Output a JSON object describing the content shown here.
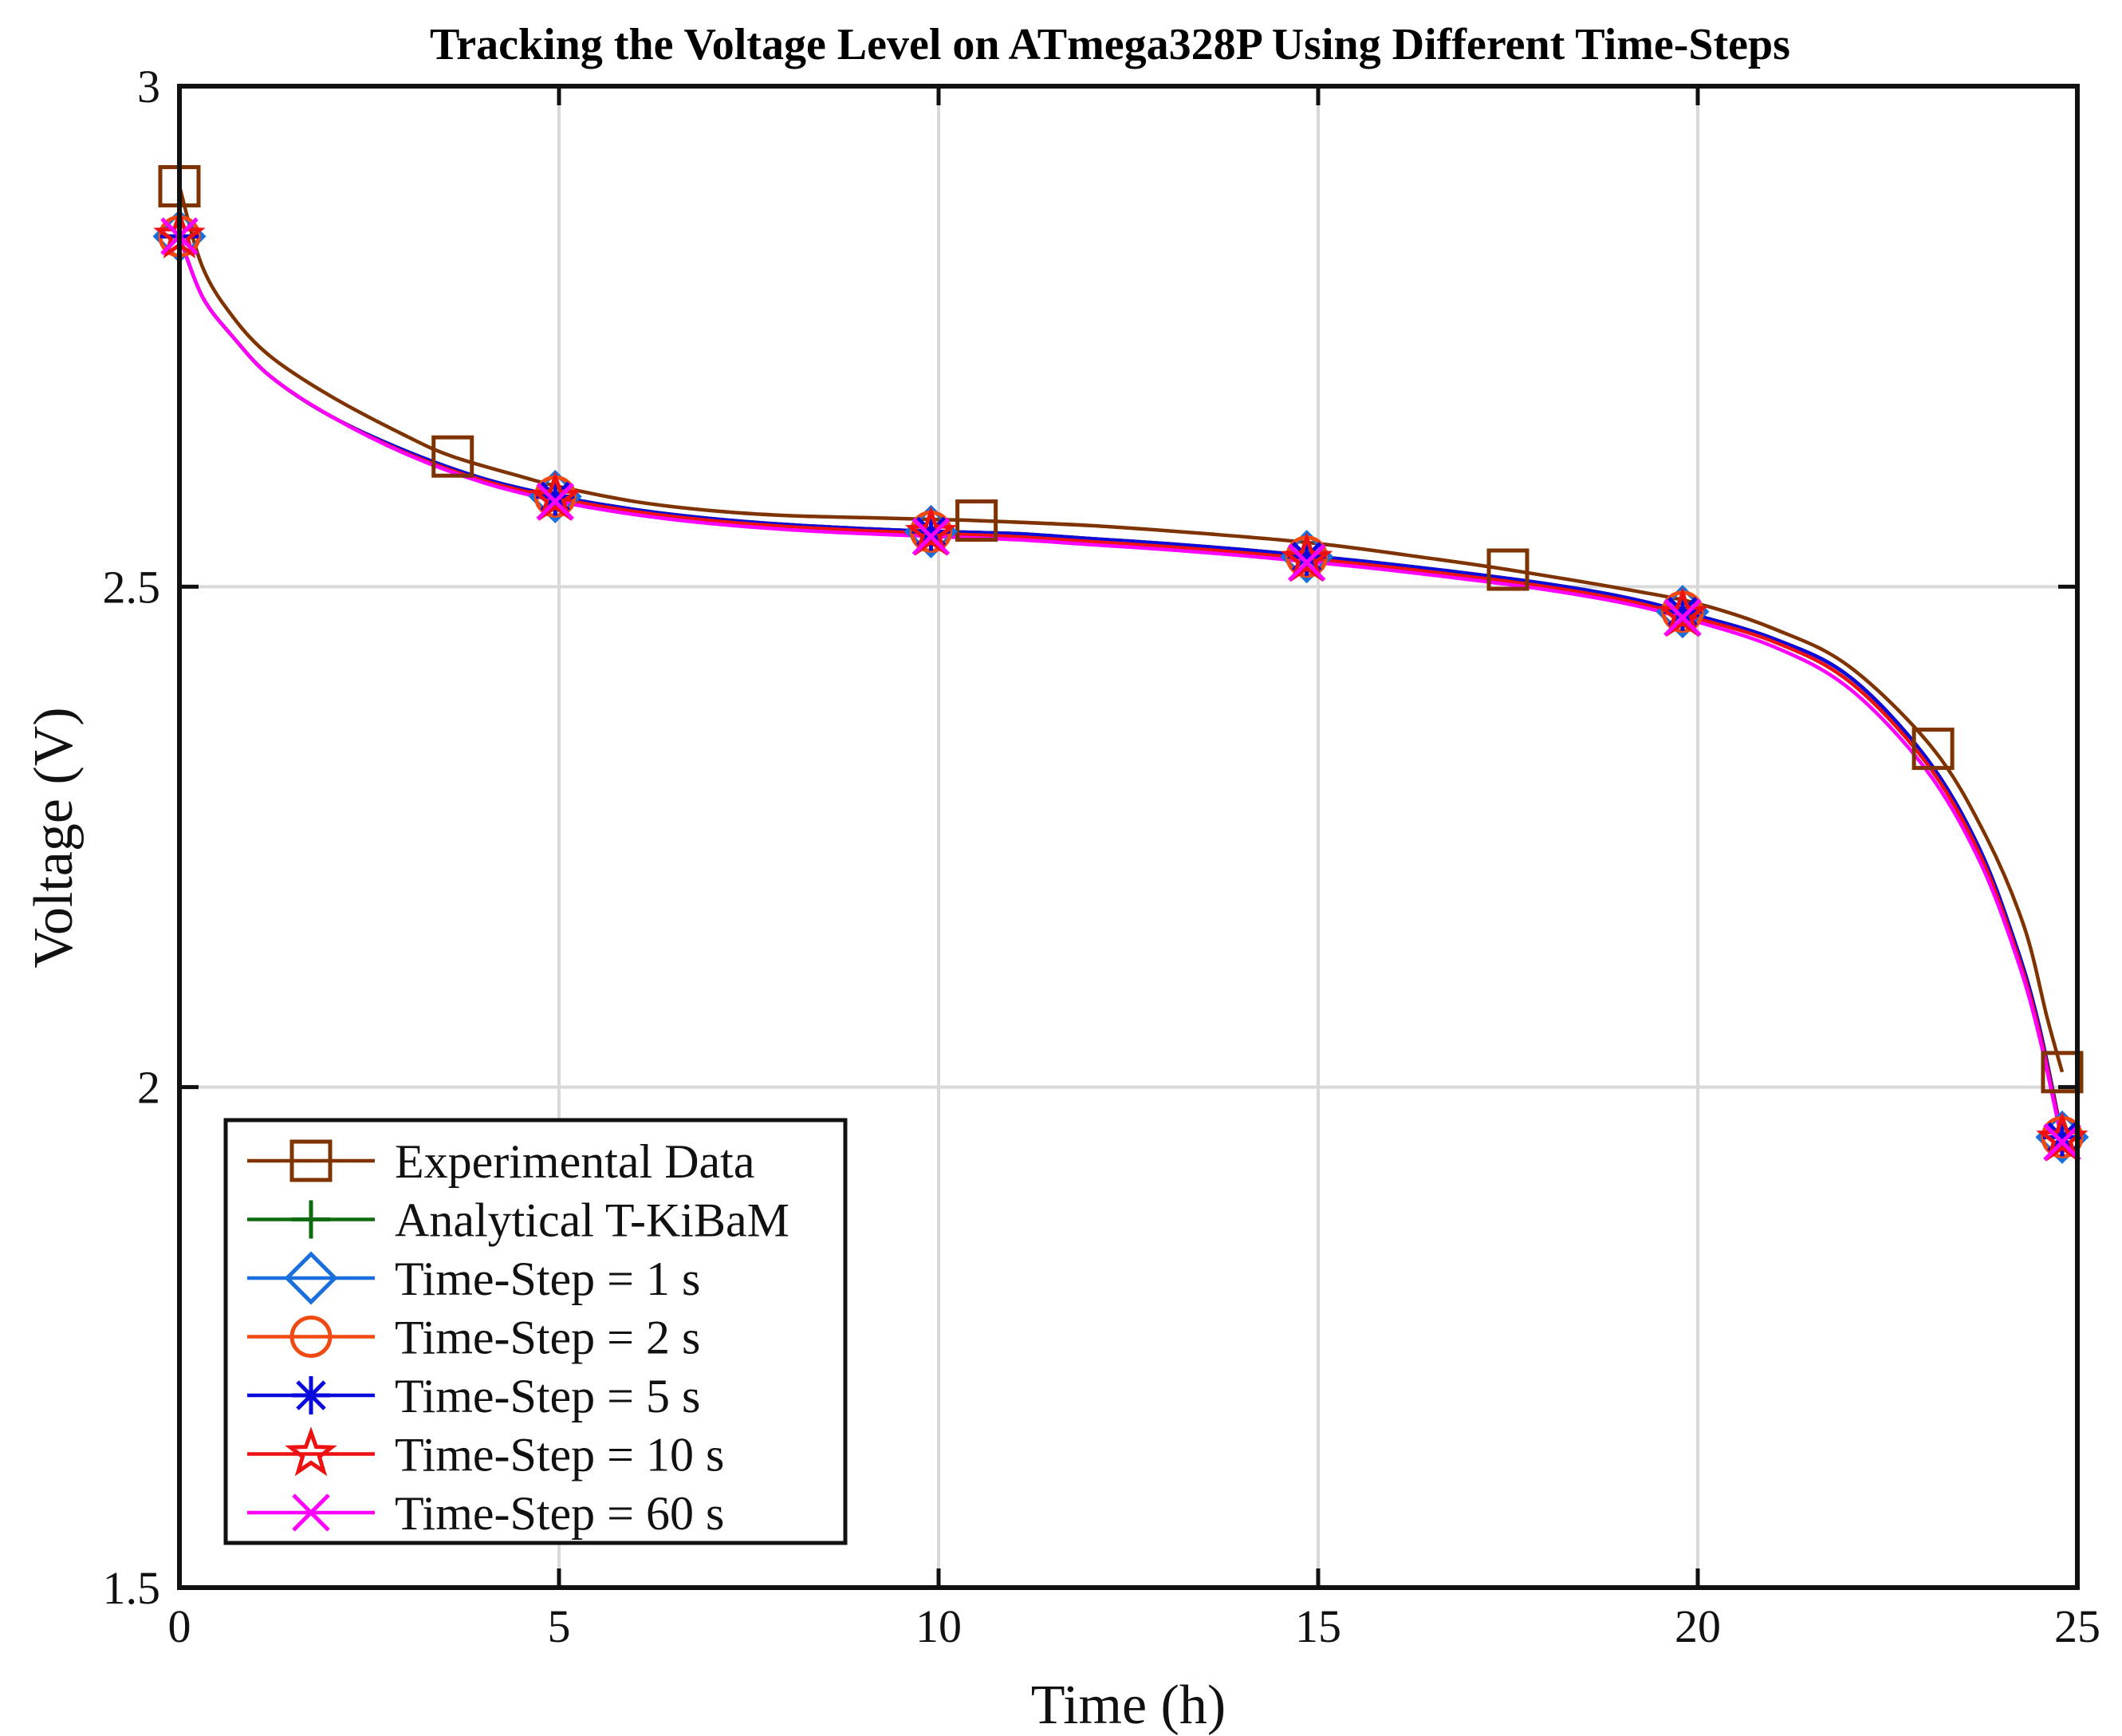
{
  "chart_data": {
    "type": "line",
    "title": "Tracking the Voltage Level on ATmega328P Using Different Time-Steps",
    "xlabel": "Time (h)",
    "ylabel": "Voltage (V)",
    "xlim": [
      0,
      25
    ],
    "ylim": [
      1.5,
      3
    ],
    "xticks": [
      0,
      5,
      10,
      15,
      20,
      25
    ],
    "xtick_labels": [
      "0",
      "5",
      "10",
      "15",
      "20",
      "25"
    ],
    "yticks": [
      1.5,
      2,
      2.5,
      3
    ],
    "ytick_labels": [
      "1.5",
      "2",
      "2.5",
      "3"
    ],
    "grid": true,
    "legend_position": "bottom-left",
    "series": [
      {
        "name": "Experimental Data",
        "color": "#7f3300",
        "marker": "square",
        "curve": [
          [
            0,
            2.9
          ],
          [
            0.3,
            2.82
          ],
          [
            0.7,
            2.77
          ],
          [
            1.2,
            2.73
          ],
          [
            2,
            2.69
          ],
          [
            3,
            2.65
          ],
          [
            3.6,
            2.63
          ],
          [
            4.5,
            2.61
          ],
          [
            5,
            2.6
          ],
          [
            6,
            2.585
          ],
          [
            7,
            2.576
          ],
          [
            8,
            2.571
          ],
          [
            9,
            2.569
          ],
          [
            10,
            2.567
          ],
          [
            10.5,
            2.566
          ],
          [
            12,
            2.561
          ],
          [
            13.5,
            2.553
          ],
          [
            15,
            2.543
          ],
          [
            16.5,
            2.528
          ],
          [
            17.5,
            2.517
          ],
          [
            19,
            2.498
          ],
          [
            20,
            2.483
          ],
          [
            21,
            2.458
          ],
          [
            22,
            2.42
          ],
          [
            23.1,
            2.338
          ],
          [
            23.8,
            2.25
          ],
          [
            24.3,
            2.16
          ],
          [
            24.6,
            2.07
          ],
          [
            24.8,
            2.015
          ]
        ],
        "markers": [
          [
            0,
            2.9
          ],
          [
            3.6,
            2.63
          ],
          [
            10.5,
            2.566
          ],
          [
            17.5,
            2.517
          ],
          [
            23.1,
            2.338
          ],
          [
            24.8,
            2.015
          ]
        ]
      },
      {
        "name": "Analytical T-KiBaM",
        "color": "#0e6b0e",
        "marker": "plus",
        "curve": [
          [
            0,
            2.85
          ],
          [
            0.3,
            2.79
          ],
          [
            0.7,
            2.75
          ],
          [
            1.2,
            2.71
          ],
          [
            2,
            2.67
          ],
          [
            3,
            2.635
          ],
          [
            4,
            2.608
          ],
          [
            5,
            2.59
          ],
          [
            6,
            2.577
          ],
          [
            7,
            2.568
          ],
          [
            8,
            2.562
          ],
          [
            9,
            2.558
          ],
          [
            10,
            2.555
          ],
          [
            11,
            2.553
          ],
          [
            12,
            2.548
          ],
          [
            13,
            2.543
          ],
          [
            14,
            2.537
          ],
          [
            15,
            2.53
          ],
          [
            16,
            2.522
          ],
          [
            17,
            2.513
          ],
          [
            18,
            2.503
          ],
          [
            19,
            2.49
          ],
          [
            19.8,
            2.475
          ],
          [
            21,
            2.448
          ],
          [
            22,
            2.41
          ],
          [
            23,
            2.33
          ],
          [
            23.7,
            2.24
          ],
          [
            24.2,
            2.14
          ],
          [
            24.5,
            2.06
          ],
          [
            24.8,
            1.95
          ]
        ],
        "markers": [
          [
            0,
            2.85
          ],
          [
            4.95,
            2.59
          ],
          [
            9.9,
            2.555
          ],
          [
            14.85,
            2.53
          ],
          [
            19.8,
            2.475
          ],
          [
            24.8,
            1.95
          ]
        ]
      },
      {
        "name": "Time-Step = 1 s",
        "color": "#1a6fdf",
        "marker": "diamond",
        "curve": [
          [
            0,
            2.85
          ],
          [
            0.3,
            2.79
          ],
          [
            0.7,
            2.75
          ],
          [
            1.2,
            2.71
          ],
          [
            2,
            2.67
          ],
          [
            3,
            2.635
          ],
          [
            4,
            2.608
          ],
          [
            5,
            2.59
          ],
          [
            6,
            2.577
          ],
          [
            7,
            2.568
          ],
          [
            8,
            2.562
          ],
          [
            9,
            2.558
          ],
          [
            10,
            2.555
          ],
          [
            11,
            2.553
          ],
          [
            12,
            2.548
          ],
          [
            13,
            2.543
          ],
          [
            14,
            2.537
          ],
          [
            15,
            2.53
          ],
          [
            16,
            2.522
          ],
          [
            17,
            2.513
          ],
          [
            18,
            2.503
          ],
          [
            19,
            2.49
          ],
          [
            19.8,
            2.475
          ],
          [
            21,
            2.448
          ],
          [
            22,
            2.41
          ],
          [
            23,
            2.33
          ],
          [
            23.7,
            2.24
          ],
          [
            24.2,
            2.14
          ],
          [
            24.5,
            2.06
          ],
          [
            24.8,
            1.95
          ]
        ],
        "markers": [
          [
            0,
            2.85
          ],
          [
            4.95,
            2.59
          ],
          [
            9.9,
            2.555
          ],
          [
            14.85,
            2.53
          ],
          [
            19.8,
            2.475
          ],
          [
            24.8,
            1.95
          ]
        ]
      },
      {
        "name": "Time-Step = 2 s",
        "color": "#f04a12",
        "marker": "circle",
        "curve": [
          [
            0,
            2.85
          ],
          [
            0.3,
            2.79
          ],
          [
            0.7,
            2.75
          ],
          [
            1.2,
            2.71
          ],
          [
            2,
            2.67
          ],
          [
            3,
            2.635
          ],
          [
            4,
            2.608
          ],
          [
            5,
            2.59
          ],
          [
            6,
            2.577
          ],
          [
            7,
            2.568
          ],
          [
            8,
            2.562
          ],
          [
            9,
            2.558
          ],
          [
            10,
            2.555
          ],
          [
            11,
            2.553
          ],
          [
            12,
            2.548
          ],
          [
            13,
            2.543
          ],
          [
            14,
            2.537
          ],
          [
            15,
            2.53
          ],
          [
            16,
            2.522
          ],
          [
            17,
            2.513
          ],
          [
            18,
            2.503
          ],
          [
            19,
            2.49
          ],
          [
            19.8,
            2.475
          ],
          [
            21,
            2.448
          ],
          [
            22,
            2.41
          ],
          [
            23,
            2.33
          ],
          [
            23.7,
            2.24
          ],
          [
            24.2,
            2.14
          ],
          [
            24.5,
            2.06
          ],
          [
            24.8,
            1.95
          ]
        ],
        "markers": [
          [
            0,
            2.85
          ],
          [
            4.95,
            2.59
          ],
          [
            9.9,
            2.555
          ],
          [
            14.85,
            2.53
          ],
          [
            19.8,
            2.475
          ],
          [
            24.8,
            1.95
          ]
        ]
      },
      {
        "name": "Time-Step = 5 s",
        "color": "#0a0add",
        "marker": "asterisk",
        "curve": [
          [
            0,
            2.85
          ],
          [
            0.3,
            2.79
          ],
          [
            0.7,
            2.75
          ],
          [
            1.2,
            2.71
          ],
          [
            2,
            2.67
          ],
          [
            3,
            2.635
          ],
          [
            4,
            2.608
          ],
          [
            5,
            2.59
          ],
          [
            6,
            2.577
          ],
          [
            7,
            2.568
          ],
          [
            8,
            2.562
          ],
          [
            9,
            2.558
          ],
          [
            10,
            2.555
          ],
          [
            11,
            2.553
          ],
          [
            12,
            2.548
          ],
          [
            13,
            2.543
          ],
          [
            14,
            2.537
          ],
          [
            15,
            2.53
          ],
          [
            16,
            2.522
          ],
          [
            17,
            2.513
          ],
          [
            18,
            2.503
          ],
          [
            19,
            2.49
          ],
          [
            19.8,
            2.475
          ],
          [
            21,
            2.448
          ],
          [
            22,
            2.41
          ],
          [
            23,
            2.33
          ],
          [
            23.7,
            2.24
          ],
          [
            24.2,
            2.14
          ],
          [
            24.5,
            2.06
          ],
          [
            24.8,
            1.95
          ]
        ],
        "markers": [
          [
            0,
            2.85
          ],
          [
            4.95,
            2.59
          ],
          [
            9.9,
            2.555
          ],
          [
            14.85,
            2.53
          ],
          [
            19.8,
            2.475
          ],
          [
            24.8,
            1.95
          ]
        ]
      },
      {
        "name": "Time-Step = 10 s",
        "color": "#ee1111",
        "marker": "star",
        "curve": [
          [
            0,
            2.85
          ],
          [
            0.3,
            2.79
          ],
          [
            0.7,
            2.75
          ],
          [
            1.2,
            2.71
          ],
          [
            2,
            2.67
          ],
          [
            3,
            2.633
          ],
          [
            4,
            2.606
          ],
          [
            5,
            2.588
          ],
          [
            6,
            2.575
          ],
          [
            7,
            2.566
          ],
          [
            8,
            2.56
          ],
          [
            9,
            2.556
          ],
          [
            10,
            2.553
          ],
          [
            11,
            2.55
          ],
          [
            12,
            2.545
          ],
          [
            13,
            2.54
          ],
          [
            14,
            2.534
          ],
          [
            15,
            2.527
          ],
          [
            16,
            2.519
          ],
          [
            17,
            2.51
          ],
          [
            18,
            2.5
          ],
          [
            19,
            2.487
          ],
          [
            19.8,
            2.472
          ],
          [
            21,
            2.445
          ],
          [
            22,
            2.405
          ],
          [
            23,
            2.325
          ],
          [
            23.7,
            2.235
          ],
          [
            24.2,
            2.135
          ],
          [
            24.5,
            2.055
          ],
          [
            24.8,
            1.948
          ]
        ],
        "markers": [
          [
            0,
            2.85
          ],
          [
            4.95,
            2.588
          ],
          [
            9.9,
            2.553
          ],
          [
            14.85,
            2.527
          ],
          [
            19.8,
            2.472
          ],
          [
            24.8,
            1.948
          ]
        ]
      },
      {
        "name": "Time-Step = 60 s",
        "color": "#ff00ff",
        "marker": "x",
        "curve": [
          [
            0,
            2.85
          ],
          [
            0.3,
            2.79
          ],
          [
            0.7,
            2.75
          ],
          [
            1.2,
            2.71
          ],
          [
            2,
            2.67
          ],
          [
            3,
            2.632
          ],
          [
            4,
            2.604
          ],
          [
            5,
            2.585
          ],
          [
            6,
            2.572
          ],
          [
            7,
            2.563
          ],
          [
            8,
            2.557
          ],
          [
            9,
            2.553
          ],
          [
            10,
            2.55
          ],
          [
            11,
            2.547
          ],
          [
            12,
            2.542
          ],
          [
            13,
            2.537
          ],
          [
            14,
            2.531
          ],
          [
            15,
            2.524
          ],
          [
            16,
            2.516
          ],
          [
            17,
            2.507
          ],
          [
            18,
            2.497
          ],
          [
            19,
            2.484
          ],
          [
            19.8,
            2.469
          ],
          [
            21,
            2.44
          ],
          [
            22,
            2.398
          ],
          [
            23,
            2.318
          ],
          [
            23.7,
            2.228
          ],
          [
            24.2,
            2.13
          ],
          [
            24.5,
            2.05
          ],
          [
            24.8,
            1.945
          ]
        ],
        "markers": [
          [
            0,
            2.85
          ],
          [
            4.95,
            2.585
          ],
          [
            9.9,
            2.55
          ],
          [
            14.85,
            2.524
          ],
          [
            19.8,
            2.469
          ],
          [
            24.8,
            1.945
          ]
        ]
      }
    ]
  }
}
